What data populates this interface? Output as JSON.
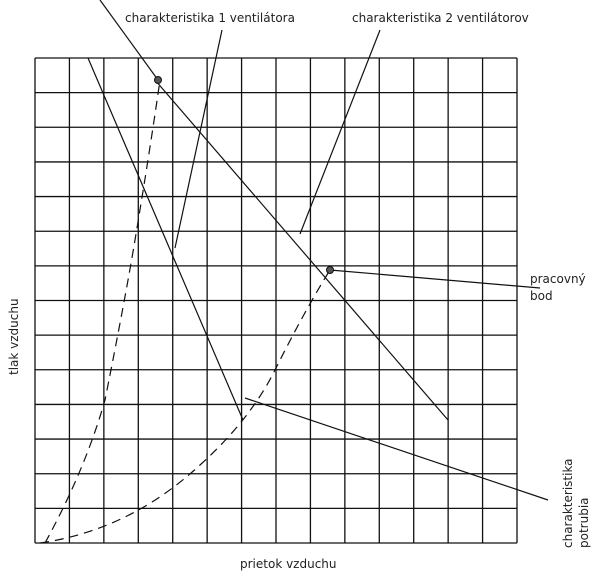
{
  "title_fan1": "charakteristika 1 ventilátora",
  "title_fan2": "charakteristika 2 ventilátorov",
  "working_point": [
    "pracovný",
    "bod"
  ],
  "pipe": [
    "charakteristika",
    "potrubia"
  ],
  "y_axis_label": "tlak vzduchu",
  "x_axis_label": "prietok vzduchu"
}
